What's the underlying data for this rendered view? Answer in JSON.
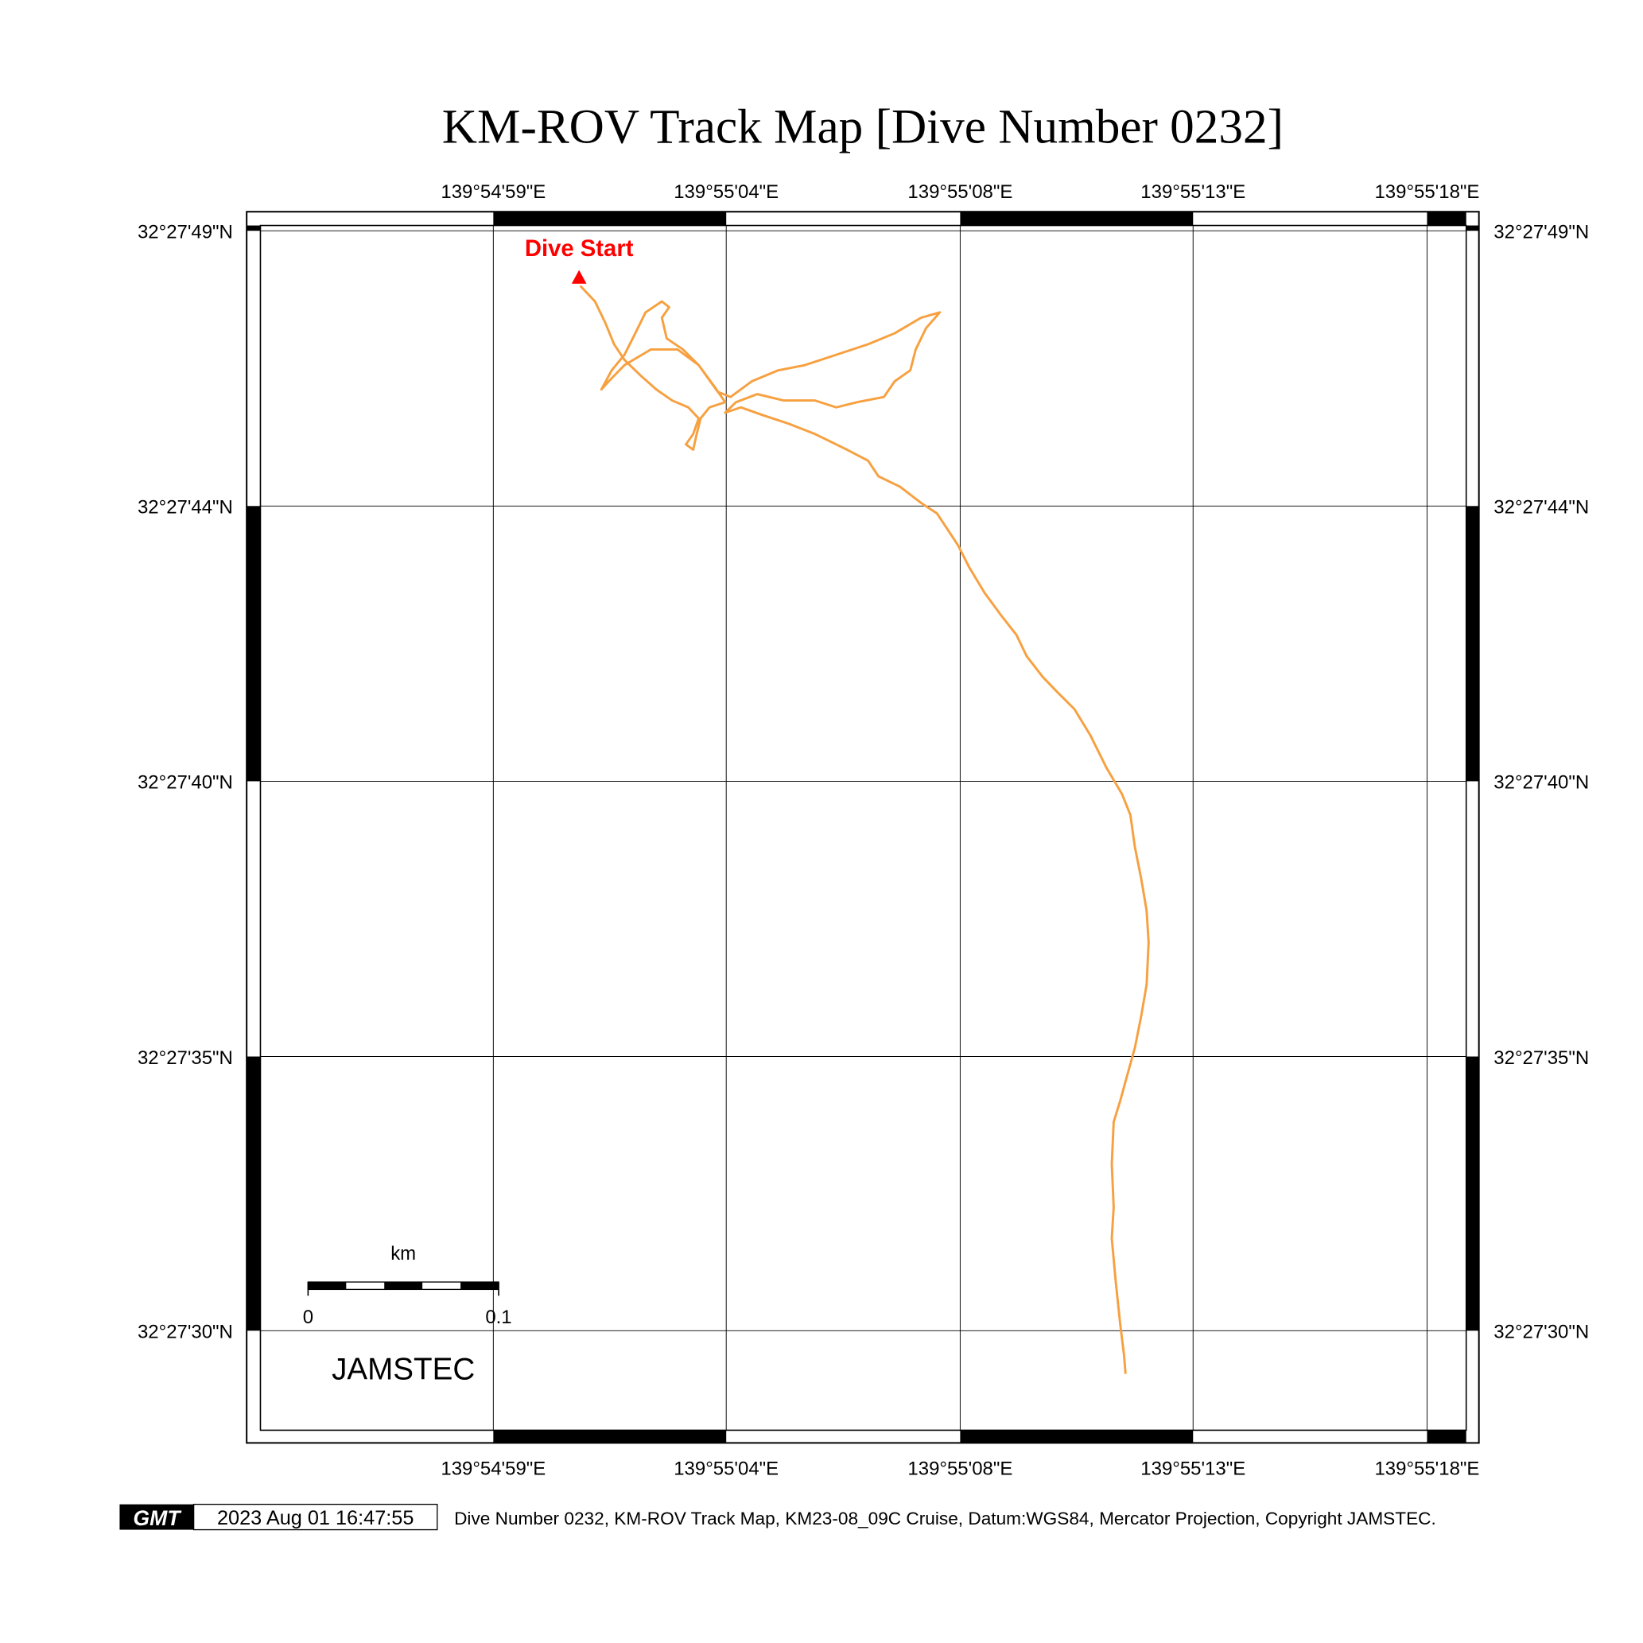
{
  "title": "KM-ROV Track Map [Dive Number 0232]",
  "lon_labels": [
    "139°54'59\"E",
    "139°55'04\"E",
    "139°55'08\"E",
    "139°55'13\"E",
    "139°55'18\"E"
  ],
  "lat_labels": [
    "32°27'49\"N",
    "32°27'44\"N",
    "32°27'40\"N",
    "32°27'35\"N",
    "32°27'30\"N"
  ],
  "start_label": "Dive Start",
  "scale_bar": {
    "unit": "km",
    "min_label": "0",
    "max_label": "0.1"
  },
  "org_label": "JAMSTEC",
  "footer": {
    "logo": "GMT",
    "timestamp": "2023 Aug 01 16:47:55",
    "caption": "Dive Number 0232, KM-ROV Track Map, KM23-08_09C Cruise, Datum:WGS84, Mercator Projection, Copyright JAMSTEC."
  },
  "colors": {
    "track": "#f7a040",
    "start": "#ff0000"
  },
  "chart_data": {
    "type": "line",
    "x_units": "longitude seconds past 139°54'",
    "y_units": "latitude seconds past 32°27'",
    "track": [
      [
        60.77,
        48.05
      ],
      [
        61.07,
        47.78
      ],
      [
        61.28,
        47.41
      ],
      [
        61.46,
        47.04
      ],
      [
        61.67,
        46.77
      ],
      [
        62.0,
        46.5
      ],
      [
        62.32,
        46.26
      ],
      [
        62.64,
        46.07
      ],
      [
        62.97,
        45.95
      ],
      [
        63.18,
        45.76
      ],
      [
        63.07,
        45.49
      ],
      [
        62.92,
        45.31
      ],
      [
        63.07,
        45.22
      ],
      [
        63.14,
        45.49
      ],
      [
        63.22,
        45.76
      ],
      [
        63.4,
        45.95
      ],
      [
        63.72,
        46.04
      ],
      [
        63.5,
        46.31
      ],
      [
        63.18,
        46.68
      ],
      [
        62.86,
        46.95
      ],
      [
        62.53,
        47.14
      ],
      [
        62.43,
        47.5
      ],
      [
        62.58,
        47.68
      ],
      [
        62.43,
        47.78
      ],
      [
        62.1,
        47.59
      ],
      [
        61.89,
        47.23
      ],
      [
        61.67,
        46.86
      ],
      [
        61.41,
        46.59
      ],
      [
        61.2,
        46.26
      ],
      [
        61.35,
        46.4
      ],
      [
        61.67,
        46.68
      ],
      [
        62.21,
        46.95
      ],
      [
        62.75,
        46.95
      ],
      [
        63.18,
        46.68
      ],
      [
        63.57,
        46.22
      ],
      [
        63.83,
        46.13
      ],
      [
        64.26,
        46.4
      ],
      [
        64.8,
        46.59
      ],
      [
        65.34,
        46.68
      ],
      [
        65.98,
        46.86
      ],
      [
        66.63,
        47.04
      ],
      [
        67.17,
        47.23
      ],
      [
        67.71,
        47.5
      ],
      [
        68.09,
        47.59
      ],
      [
        67.81,
        47.32
      ],
      [
        67.6,
        46.95
      ],
      [
        67.49,
        46.59
      ],
      [
        67.17,
        46.4
      ],
      [
        66.95,
        46.13
      ],
      [
        66.41,
        46.04
      ],
      [
        65.98,
        45.95
      ],
      [
        65.55,
        46.07
      ],
      [
        64.91,
        46.07
      ],
      [
        64.37,
        46.18
      ],
      [
        63.94,
        46.04
      ],
      [
        63.72,
        45.86
      ],
      [
        64.04,
        45.95
      ],
      [
        64.47,
        45.82
      ],
      [
        65.01,
        45.67
      ],
      [
        65.55,
        45.49
      ],
      [
        66.2,
        45.22
      ],
      [
        66.63,
        45.03
      ],
      [
        66.84,
        44.76
      ],
      [
        67.28,
        44.58
      ],
      [
        67.71,
        44.3
      ],
      [
        68.03,
        44.12
      ],
      [
        68.25,
        43.84
      ],
      [
        68.46,
        43.57
      ],
      [
        68.68,
        43.2
      ],
      [
        69.0,
        42.75
      ],
      [
        69.32,
        42.38
      ],
      [
        69.65,
        42.02
      ],
      [
        69.86,
        41.65
      ],
      [
        70.19,
        41.29
      ],
      [
        70.51,
        41.01
      ],
      [
        70.83,
        40.74
      ],
      [
        71.16,
        40.28
      ],
      [
        71.48,
        39.73
      ],
      [
        71.8,
        39.27
      ],
      [
        71.97,
        38.91
      ],
      [
        72.06,
        38.36
      ],
      [
        72.19,
        37.81
      ],
      [
        72.3,
        37.26
      ],
      [
        72.34,
        36.71
      ],
      [
        72.3,
        35.98
      ],
      [
        72.19,
        35.44
      ],
      [
        72.06,
        34.89
      ],
      [
        71.91,
        34.43
      ],
      [
        71.76,
        33.97
      ],
      [
        71.63,
        33.61
      ],
      [
        71.59,
        32.88
      ],
      [
        71.63,
        32.14
      ],
      [
        71.59,
        31.6
      ],
      [
        71.67,
        30.86
      ],
      [
        71.76,
        30.13
      ],
      [
        71.84,
        29.58
      ],
      [
        71.87,
        29.26
      ]
    ]
  }
}
